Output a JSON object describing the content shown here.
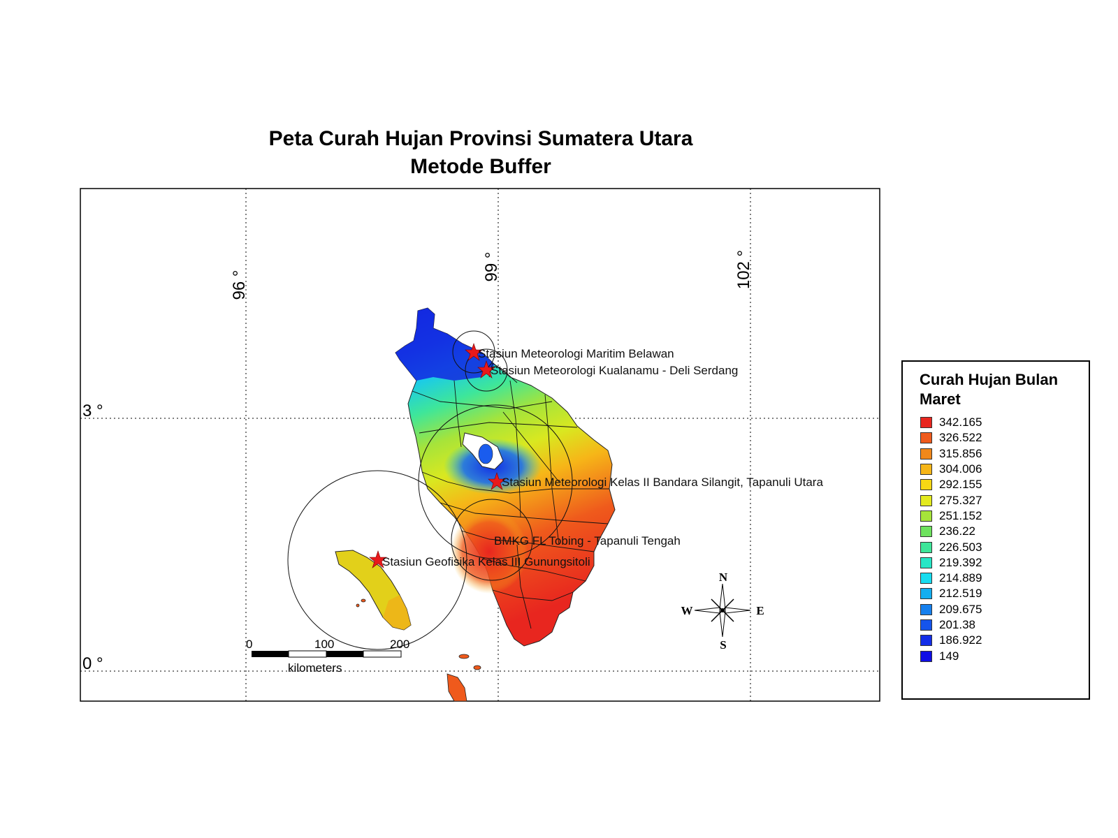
{
  "title": {
    "line1": "Peta Curah Hujan Provinsi Sumatera Utara",
    "line2": "Metode Buffer"
  },
  "graticule": {
    "lon_labels": [
      "96 °",
      "99 °",
      "102 °"
    ],
    "lat_labels": [
      "3 °",
      "0 °"
    ]
  },
  "stations": [
    {
      "name": "Stasiun Meteorologi Maritim Belawan"
    },
    {
      "name": "Stasiun Meteorologi Kualanamu - Deli Serdang"
    },
    {
      "name": "Stasiun Meteorologi Kelas II Bandara Silangit, Tapanuli Utara"
    },
    {
      "name": "BMKG FL Tobing - Tapanuli Tengah"
    },
    {
      "name": "Stasiun Geofisika Kelas III Gunungsitoli"
    }
  ],
  "scale_bar": {
    "ticks": [
      "0",
      "100",
      "200"
    ],
    "unit": "kilometers"
  },
  "north_arrow": {
    "n": "N",
    "s": "S",
    "e": "E",
    "w": "W"
  },
  "legend": {
    "title": "Curah Hujan Bulan Maret",
    "items": [
      {
        "label": "342.165",
        "color": "#e8261f"
      },
      {
        "label": "326.522",
        "color": "#ef5a1c"
      },
      {
        "label": "315.856",
        "color": "#f0881a"
      },
      {
        "label": "304.006",
        "color": "#f6b618"
      },
      {
        "label": "292.155",
        "color": "#f7d714"
      },
      {
        "label": "275.327",
        "color": "#e3ea1e"
      },
      {
        "label": "251.152",
        "color": "#a6e43a"
      },
      {
        "label": "236.22",
        "color": "#6ee25e"
      },
      {
        "label": "226.503",
        "color": "#3ee69a"
      },
      {
        "label": "219.392",
        "color": "#27e6c6"
      },
      {
        "label": "214.889",
        "color": "#17dcef"
      },
      {
        "label": "212.519",
        "color": "#14aef0"
      },
      {
        "label": "209.675",
        "color": "#1680ee"
      },
      {
        "label": "201.38",
        "color": "#1554ec"
      },
      {
        "label": "186.922",
        "color": "#132ee8"
      },
      {
        "label": "149",
        "color": "#0f0ee6"
      }
    ]
  }
}
